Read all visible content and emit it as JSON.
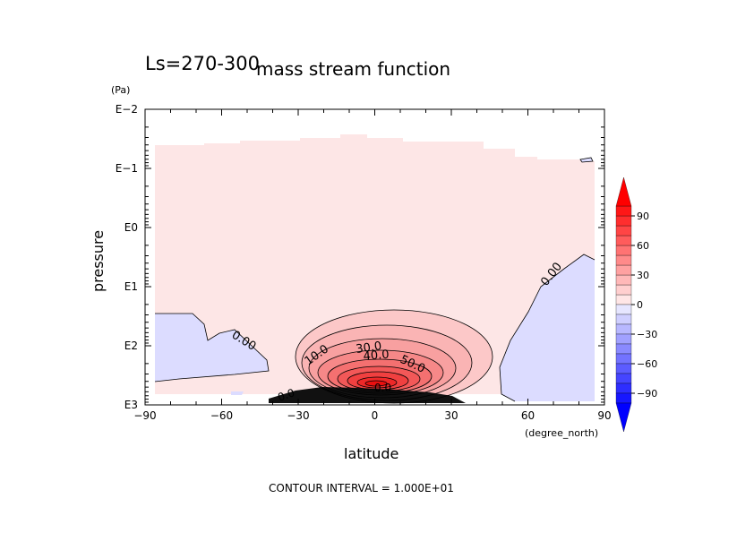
{
  "chart_data": {
    "type": "contour",
    "title": "mass stream function",
    "subtitle": "Ls=270-300",
    "xlabel": "latitude",
    "x_unit": "(degree_north)",
    "ylabel": "pressure",
    "y_unit": "(Pa)",
    "x_ticks": [
      "−90",
      "−60",
      "−30",
      "0",
      "30",
      "60",
      "90"
    ],
    "x_tick_values": [
      -90,
      -60,
      -30,
      0,
      30,
      60,
      90
    ],
    "y_ticks": [
      "E−2",
      "E−1",
      "E0",
      "E1",
      "E2",
      "E3"
    ],
    "y_tick_exponents": [
      -2,
      -1,
      0,
      1,
      2,
      3
    ],
    "xlim": [
      -90,
      90
    ],
    "ylim_log10_pa": [
      -2,
      3
    ],
    "y_axis": "log pressure, increasing downward",
    "contour_interval": 10,
    "contour_interval_text": "CONTOUR INTERVAL = 1.000E+01",
    "contour_labels": [
      "0.00",
      "0.00",
      "10.0",
      "30.0",
      "40.0",
      "50.0",
      "0.0",
      "0.0"
    ],
    "colorbar": {
      "tick_labels": [
        "90",
        "60",
        "30",
        "0",
        "−30",
        "−60",
        "−90"
      ],
      "tick_values": [
        90,
        60,
        30,
        0,
        -30,
        -60,
        -90
      ],
      "range": [
        -100,
        100
      ],
      "positive_color": "#ff0000",
      "negative_color": "#0000ff"
    },
    "features": [
      {
        "name": "cross-equatorial cell",
        "sign": "positive",
        "peak_approx": 100,
        "peak_lat": -5,
        "peak_pressure_exp": 2.6
      },
      {
        "name": "southern mid-latitude cell",
        "sign": "negative",
        "peak_approx": -5,
        "lat_range": [
          -88,
          -35
        ],
        "pressure_exp_range": [
          1.5,
          2.5
        ]
      },
      {
        "name": "northern high-latitude cell",
        "sign": "negative",
        "peak_approx": -5,
        "lat_range": [
          40,
          85
        ],
        "pressure_exp_range": [
          0.5,
          2.9
        ]
      }
    ]
  }
}
